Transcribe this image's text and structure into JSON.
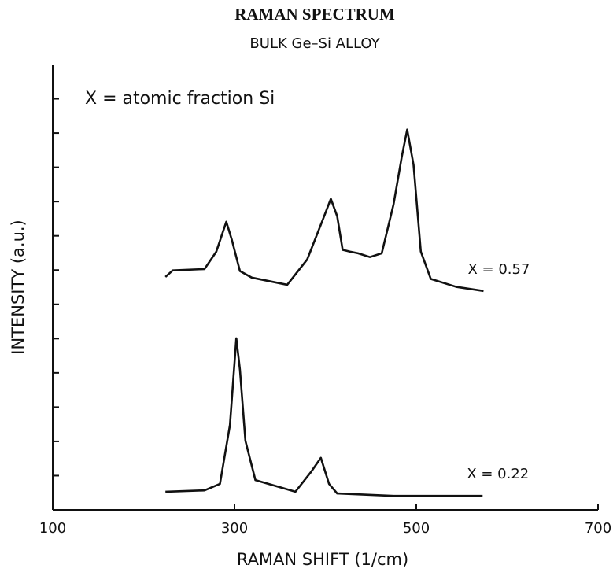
{
  "chart_data": {
    "type": "line",
    "title": "RAMAN SPECTRUM",
    "subtitle": "BULK Ge–Si ALLOY",
    "annotation": "X = atomic fraction Si",
    "xlabel": "RAMAN SHIFT (1/cm)",
    "ylabel": "INTENSITY (a.u.)",
    "xlim": [
      100,
      700
    ],
    "xticks": [
      100,
      300,
      500,
      700
    ],
    "ylim": [
      0,
      13
    ],
    "yticks": [
      1,
      2,
      3,
      4,
      5,
      6,
      7,
      8,
      9,
      10,
      11,
      12
    ],
    "series": [
      {
        "name": "X = 0.57",
        "color": "#111111",
        "x": [
          224,
          232,
          267,
          280,
          291,
          297,
          306,
          319,
          358,
          380,
          397,
          406,
          413,
          419,
          427,
          436,
          449,
          462,
          475,
          484,
          490,
          497,
          505,
          516,
          544,
          574
        ],
        "values": [
          6.8,
          6.99,
          7.03,
          7.54,
          8.41,
          7.89,
          6.97,
          6.78,
          6.57,
          7.31,
          8.46,
          9.08,
          8.57,
          7.59,
          7.54,
          7.49,
          7.38,
          7.49,
          8.92,
          10.3,
          11.1,
          10.07,
          7.54,
          6.74,
          6.51,
          6.39
        ]
      },
      {
        "name": "X = 0.22",
        "color": "#111111",
        "x": [
          224,
          267,
          284,
          295,
          302,
          306,
          312,
          323,
          367,
          384,
          395,
          404,
          413,
          475,
          573
        ],
        "values": [
          0.53,
          0.57,
          0.76,
          2.48,
          5.01,
          4.09,
          2.02,
          0.87,
          0.53,
          1.1,
          1.52,
          0.76,
          0.48,
          0.41,
          0.41
        ]
      }
    ]
  }
}
